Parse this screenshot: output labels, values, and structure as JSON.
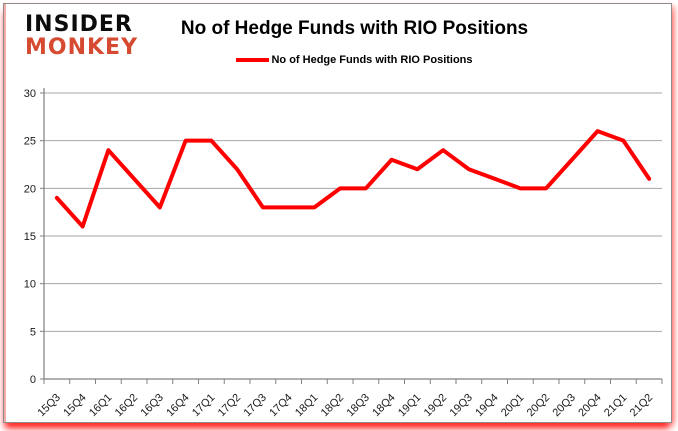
{
  "logo": {
    "line1": "INSIDER",
    "line2": "MONKEY"
  },
  "header": {
    "title": "No of Hedge Funds with RIO Positions"
  },
  "legend": {
    "label": "No of Hedge Funds with RIO Positions"
  },
  "colors": {
    "series": "#fe0000",
    "grid": "#a6a6a6",
    "axis": "#808080",
    "tick_text": "#1a1a1a",
    "logo_black": "#0c0c0c",
    "logo_red": "#d64a32",
    "bottom_glow": "#ff0000"
  },
  "chart_data": {
    "type": "line",
    "title": "No of Hedge Funds with RIO Positions",
    "categories": [
      "15Q3",
      "15Q4",
      "16Q1",
      "16Q2",
      "16Q3",
      "16Q4",
      "17Q1",
      "17Q2",
      "17Q3",
      "17Q4",
      "18Q1",
      "18Q2",
      "18Q3",
      "18Q4",
      "19Q1",
      "19Q2",
      "19Q3",
      "19Q4",
      "20Q1",
      "20Q2",
      "20Q3",
      "20Q4",
      "21Q1",
      "21Q2"
    ],
    "series": [
      {
        "name": "No of Hedge Funds with RIO Positions",
        "color": "#fe0000",
        "values": [
          19,
          16,
          24,
          21,
          18,
          25,
          25,
          22,
          18,
          18,
          18,
          20,
          20,
          23,
          22,
          24,
          22,
          21,
          20,
          20,
          23,
          26,
          25,
          21
        ]
      }
    ],
    "xlabel": "",
    "ylabel": "",
    "ylim": [
      0,
      30
    ],
    "yticks": [
      0,
      5,
      10,
      15,
      20,
      25,
      30
    ],
    "grid": true,
    "legend_position": "top"
  }
}
